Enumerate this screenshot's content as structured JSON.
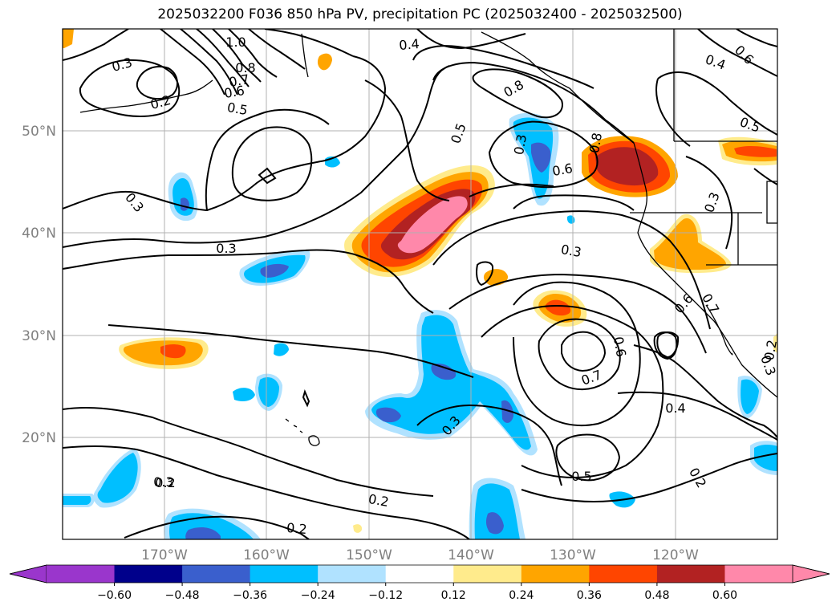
{
  "title": "2025032200 F036 850 hPa PV, precipitation PC (2025032400 - 2025032500)",
  "map": {
    "lat_ticks": [
      "50°N",
      "40°N",
      "30°N",
      "20°N"
    ],
    "lon_ticks": [
      "170°W",
      "160°W",
      "150°W",
      "140°W",
      "130°W",
      "120°W"
    ],
    "lon_range": [
      -179,
      -109
    ],
    "lat_range": [
      10,
      59.5
    ],
    "contour_labels": [
      "1.0",
      "0.8",
      "0.7",
      "0.6",
      "0.5",
      "0.3",
      "0.2",
      "0.4",
      "0.5",
      "0.6",
      "0.8",
      "0.4",
      "0.5",
      "0.8",
      "0.6",
      "0.3",
      "0.3",
      "0.3",
      "0.3",
      "0.3",
      "0.7",
      "0.6",
      "0.6",
      "0.7",
      "0.4",
      "0.5",
      "0.2",
      "0.2",
      "0.2",
      "0.2",
      "0.3",
      "0.3",
      "0.2",
      "0.3"
    ]
  },
  "colorbar": {
    "labels": [
      "−0.60",
      "−0.48",
      "−0.36",
      "−0.24",
      "−0.12",
      "0.12",
      "0.24",
      "0.36",
      "0.48",
      "0.60"
    ],
    "colors": [
      "#9a36cc",
      "#00008b",
      "#3a5fcd",
      "#00bfff",
      "#b0e2ff",
      "#ffffff",
      "#ffeb8c",
      "#ffa500",
      "#ff4500",
      "#b22222",
      "#ff88aa"
    ],
    "under_color": "#9a36cc",
    "over_color": "#ff88aa"
  },
  "colors": {
    "land_line": "#000000",
    "grid": "#b0b0b0",
    "contour": "#000000"
  }
}
